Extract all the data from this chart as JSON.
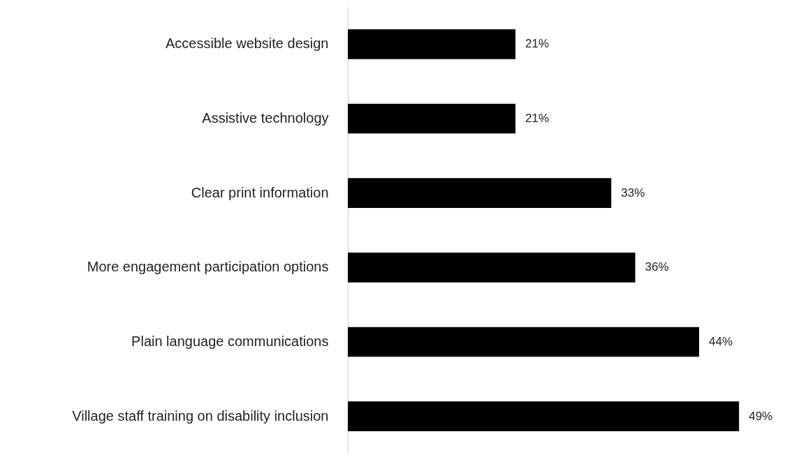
{
  "chart_data": {
    "type": "bar",
    "orientation": "horizontal",
    "categories": [
      "Accessible website design",
      "Assistive technology",
      "Clear print information",
      "More engagement participation options",
      "Plain language communications",
      "Village staff training on disability inclusion"
    ],
    "values": [
      21,
      21,
      33,
      36,
      44,
      49
    ],
    "value_labels": [
      "21%",
      "21%",
      "33%",
      "36%",
      "44%",
      "49%"
    ],
    "color": "#000000"
  }
}
